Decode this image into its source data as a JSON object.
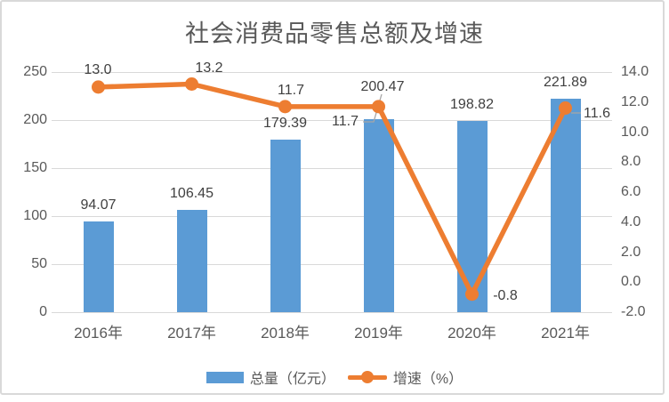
{
  "chart_data": {
    "type": "bar+line combo",
    "title": "社会消费品零售总额及增速",
    "categories": [
      "2016年",
      "2017年",
      "2018年",
      "2019年",
      "2020年",
      "2021年"
    ],
    "series": [
      {
        "name": "总量（亿元）",
        "type": "bar",
        "axis": "left",
        "values": [
          94.07,
          106.45,
          179.39,
          200.47,
          198.82,
          221.89
        ],
        "labels": [
          "94.07",
          "106.45",
          "179.39",
          "200.47",
          "198.82",
          "221.89"
        ],
        "color": "#5B9BD5"
      },
      {
        "name": "增速（%）",
        "type": "line",
        "axis": "right",
        "values": [
          13.0,
          13.2,
          11.7,
          11.7,
          -0.8,
          11.6
        ],
        "labels": [
          "13.0",
          "13.2",
          "11.7",
          "11.7",
          "-0.8",
          "11.6"
        ],
        "color": "#ED7D31"
      }
    ],
    "axes": {
      "left": {
        "min": 0,
        "max": 250,
        "tick_step": 50,
        "ticks": [
          "250",
          "200",
          "150",
          "100",
          "50",
          "0"
        ]
      },
      "right": {
        "min": -2.0,
        "max": 14.0,
        "tick_step": 2.0,
        "ticks": [
          "14.0",
          "12.0",
          "10.0",
          "8.0",
          "6.0",
          "4.0",
          "2.0",
          "0.0",
          "-2.0"
        ]
      }
    },
    "grid": "horizontal, at left-axis ticks",
    "legend_position": "bottom",
    "colors": {
      "bar": "#5B9BD5",
      "line": "#ED7D31",
      "grid": "#D9D9D9",
      "axis_text": "#595959",
      "data_label_text": "#404040",
      "leader_line": "#A6A6A6",
      "frame_border": "#D9D9D9",
      "title_text": "#595959"
    }
  }
}
